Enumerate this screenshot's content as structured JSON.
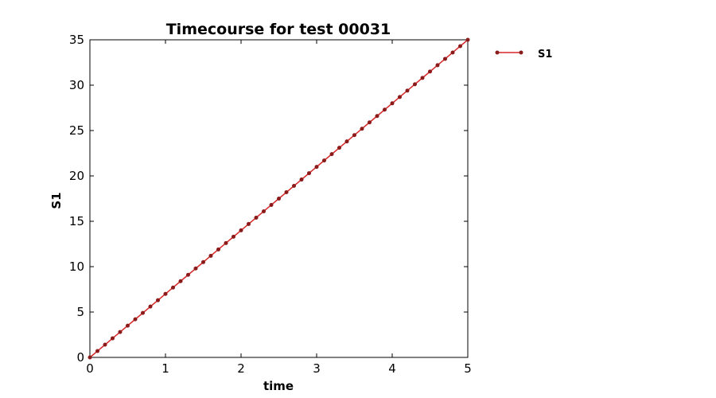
{
  "chart_data": {
    "type": "line",
    "title": "Timecourse for test 00031",
    "xlabel": "time",
    "ylabel": "S1",
    "xlim": [
      0,
      5
    ],
    "ylim": [
      0,
      35
    ],
    "x_ticks": [
      "0",
      "1",
      "2",
      "3",
      "4",
      "5"
    ],
    "y_ticks": [
      "0",
      "5",
      "10",
      "15",
      "20",
      "25",
      "30",
      "35"
    ],
    "grid": false,
    "legend_position": "right, outside plot",
    "series": [
      {
        "name": "S1",
        "color": "#d62728",
        "marker_color": "#8b1a1a",
        "x": [
          0,
          0.1,
          0.2,
          0.3,
          0.4,
          0.5,
          0.6,
          0.7,
          0.8,
          0.9,
          1.0,
          1.1,
          1.2,
          1.3,
          1.4,
          1.5,
          1.6,
          1.7,
          1.8,
          1.9,
          2.0,
          2.1,
          2.2,
          2.3,
          2.4,
          2.5,
          2.6,
          2.7,
          2.8,
          2.9,
          3.0,
          3.1,
          3.2,
          3.3,
          3.4,
          3.5,
          3.6,
          3.7,
          3.8,
          3.9,
          4.0,
          4.1,
          4.2,
          4.3,
          4.4,
          4.5,
          4.6,
          4.7,
          4.8,
          4.9,
          5.0
        ],
        "values": [
          0,
          0.7,
          1.4,
          2.1,
          2.8,
          3.5,
          4.2,
          4.9,
          5.6,
          6.3,
          7.0,
          7.7,
          8.4,
          9.1,
          9.8,
          10.5,
          11.2,
          11.9,
          12.6,
          13.3,
          14.0,
          14.7,
          15.4,
          16.1,
          16.8,
          17.5,
          18.2,
          18.9,
          19.6,
          20.3,
          21.0,
          21.7,
          22.4,
          23.1,
          23.8,
          24.5,
          25.2,
          25.9,
          26.6,
          27.3,
          28.0,
          28.7,
          29.4,
          30.1,
          30.8,
          31.5,
          32.2,
          32.9,
          33.6,
          34.3,
          35.0
        ]
      }
    ]
  }
}
